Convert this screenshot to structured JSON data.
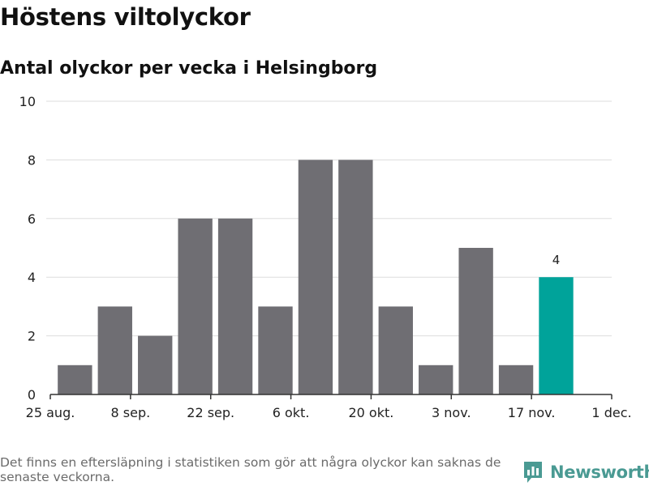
{
  "header": {
    "title": "Höstens viltolyckor",
    "subtitle": "Antal olyckor per vecka i Helsingborg"
  },
  "footer": {
    "note": "Det finns en eftersläpning i statistiken som gör att några olyckor kan saknas de senaste veckorna.",
    "brand": "Newsworthy",
    "brand_icon": "newsworthy-logo-icon"
  },
  "colors": {
    "bar": "#6f6e73",
    "highlight": "#00a39a",
    "grid": "#dddddd",
    "axis": "#333333",
    "brand": "#4a9a93"
  },
  "chart_data": {
    "type": "bar",
    "title": "Höstens viltolyckor",
    "subtitle": "Antal olyckor per vecka i Helsingborg",
    "xlabel": "",
    "ylabel": "",
    "x_axis": {
      "start": "2019-08-25",
      "end": "2019-12-01",
      "tick_labels": [
        "25 aug.",
        "8 sep.",
        "22 sep.",
        "6 okt.",
        "20 okt.",
        "3 nov.",
        "17 nov.",
        "1 dec."
      ]
    },
    "ylim": [
      0,
      10
    ],
    "y_ticks": [
      0,
      2,
      4,
      6,
      8,
      10
    ],
    "grid": true,
    "bars": [
      {
        "week_start": "2019-08-26",
        "value": 1
      },
      {
        "week_start": "2019-09-02",
        "value": 3
      },
      {
        "week_start": "2019-09-09",
        "value": 2
      },
      {
        "week_start": "2019-09-16",
        "value": 6
      },
      {
        "week_start": "2019-09-23",
        "value": 6
      },
      {
        "week_start": "2019-09-30",
        "value": 3
      },
      {
        "week_start": "2019-10-07",
        "value": 8
      },
      {
        "week_start": "2019-10-14",
        "value": 8
      },
      {
        "week_start": "2019-10-21",
        "value": 3
      },
      {
        "week_start": "2019-10-28",
        "value": 1
      },
      {
        "week_start": "2019-11-04",
        "value": 5
      },
      {
        "week_start": "2019-11-11",
        "value": 1
      },
      {
        "week_start": "2019-11-18",
        "value": 4,
        "highlight": true,
        "label": "4"
      }
    ]
  }
}
